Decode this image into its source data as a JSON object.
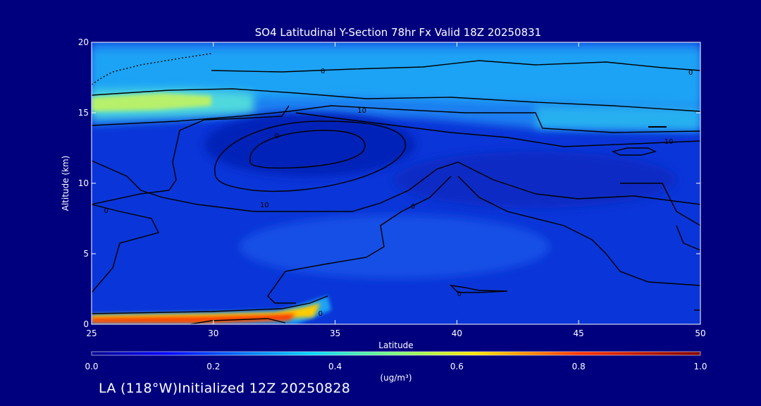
{
  "chart_data": {
    "type": "heatmap",
    "title": "SO4 Latitudinal Y-Section 78hr  Fx Valid 18Z 20250831",
    "xlabel": "Latitude",
    "ylabel": "Altitude (km)",
    "xlim": [
      25,
      50
    ],
    "ylim": [
      0,
      20
    ],
    "x_ticks": [
      25,
      30,
      35,
      40,
      45,
      50
    ],
    "y_ticks": [
      0,
      5,
      10,
      15,
      20
    ],
    "colorbar": {
      "label": "(ug/m³)",
      "min": 0.0,
      "max": 1.0,
      "ticks": [
        "0.0",
        "0.2",
        "0.4",
        "0.6",
        "0.8",
        "1.0"
      ]
    },
    "contour_labels": [
      {
        "text": "0",
        "lat": 34.4,
        "alt": 0.6
      },
      {
        "text": "0",
        "lat": 25.6,
        "alt": 7.9
      },
      {
        "text": "0",
        "lat": 38.2,
        "alt": 8.2
      },
      {
        "text": "0",
        "lat": 40.1,
        "alt": 2.0
      },
      {
        "text": "10",
        "lat": 32.1,
        "alt": 8.3
      },
      {
        "text": "0",
        "lat": 32.6,
        "alt": 13.2
      },
      {
        "text": "10",
        "lat": 36.1,
        "alt": 15.0
      },
      {
        "text": "0",
        "lat": 34.5,
        "alt": 17.8
      },
      {
        "text": "0",
        "lat": 49.6,
        "alt": 17.7
      },
      {
        "text": "10",
        "lat": 48.7,
        "alt": 12.8
      }
    ],
    "grid": false
  },
  "footer": {
    "run_info": "LA (118°W)Initialized 12Z 20250828"
  },
  "colors": {
    "background": "#00007f",
    "field_base": "#0a35d8",
    "high": "#ff2a00",
    "contour": "#000000"
  }
}
